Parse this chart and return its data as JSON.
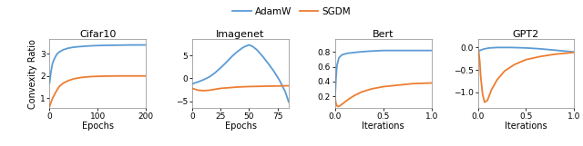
{
  "legend_labels": [
    "AdamW",
    "SGDM"
  ],
  "subplots": [
    {
      "title": "Cifar10",
      "xlabel": "Epochs",
      "ylabel": "Convexity Ratio",
      "xlim": [
        0,
        200
      ],
      "ylim": [
        0.55,
        3.65
      ],
      "yticks": [
        1,
        2,
        3
      ],
      "xticks": [
        0,
        100,
        200
      ],
      "adamw_x": [
        0,
        3,
        6,
        10,
        15,
        20,
        28,
        38,
        50,
        65,
        85,
        110,
        140,
        170,
        200
      ],
      "adamw_y": [
        1.68,
        2.2,
        2.55,
        2.78,
        2.98,
        3.08,
        3.18,
        3.25,
        3.3,
        3.33,
        3.36,
        3.38,
        3.39,
        3.4,
        3.4
      ],
      "sgdm_x": [
        0,
        3,
        6,
        10,
        15,
        20,
        28,
        38,
        50,
        65,
        85,
        110,
        140,
        170,
        200
      ],
      "sgdm_y": [
        0.62,
        0.8,
        0.98,
        1.15,
        1.35,
        1.52,
        1.67,
        1.78,
        1.87,
        1.93,
        1.97,
        1.99,
        2.0,
        2.0,
        2.0
      ]
    },
    {
      "title": "Imagenet",
      "xlabel": "Epochs",
      "ylabel": "",
      "xlim": [
        0,
        85
      ],
      "ylim": [
        -6.5,
        8.5
      ],
      "yticks": [
        -5,
        0,
        5
      ],
      "xticks": [
        0,
        25,
        50,
        75
      ],
      "adamw_x": [
        0,
        5,
        10,
        15,
        20,
        25,
        30,
        35,
        40,
        45,
        50,
        53,
        57,
        62,
        67,
        72,
        77,
        82,
        85
      ],
      "adamw_y": [
        -1.2,
        -0.8,
        -0.3,
        0.3,
        1.2,
        2.3,
        3.5,
        4.8,
        5.9,
        6.8,
        7.3,
        7.0,
        6.2,
        4.8,
        3.2,
        1.5,
        -0.5,
        -3.0,
        -5.2
      ],
      "sgdm_x": [
        0,
        5,
        10,
        15,
        20,
        25,
        30,
        35,
        40,
        45,
        50,
        55,
        60,
        65,
        70,
        75,
        80,
        85
      ],
      "sgdm_y": [
        -2.2,
        -2.6,
        -2.7,
        -2.6,
        -2.4,
        -2.2,
        -2.1,
        -2.0,
        -1.9,
        -1.85,
        -1.8,
        -1.78,
        -1.75,
        -1.72,
        -1.7,
        -1.68,
        -1.65,
        -1.62
      ]
    },
    {
      "title": "Bert",
      "xlabel": "Iterations",
      "ylabel": "",
      "xlim": [
        0.0,
        1.0
      ],
      "ylim": [
        0.04,
        0.97
      ],
      "yticks": [
        0.2,
        0.4,
        0.6,
        0.8
      ],
      "xticks": [
        0.0,
        0.5,
        1.0
      ],
      "adamw_x": [
        0.0,
        0.01,
        0.02,
        0.04,
        0.07,
        0.12,
        0.18,
        0.25,
        0.35,
        0.5,
        0.65,
        0.8,
        1.0
      ],
      "adamw_y": [
        0.18,
        0.45,
        0.62,
        0.72,
        0.76,
        0.78,
        0.79,
        0.8,
        0.81,
        0.82,
        0.82,
        0.82,
        0.82
      ],
      "sgdm_x": [
        0.0,
        0.01,
        0.02,
        0.03,
        0.05,
        0.07,
        0.1,
        0.14,
        0.2,
        0.28,
        0.38,
        0.5,
        0.65,
        0.8,
        1.0
      ],
      "sgdm_y": [
        0.18,
        0.1,
        0.07,
        0.06,
        0.07,
        0.09,
        0.12,
        0.16,
        0.21,
        0.26,
        0.3,
        0.33,
        0.35,
        0.37,
        0.38
      ]
    },
    {
      "title": "GPT2",
      "xlabel": "Iterations",
      "ylabel": "",
      "xlim": [
        0.0,
        1.0
      ],
      "ylim": [
        -1.35,
        0.18
      ],
      "yticks": [
        -1.0,
        -0.5,
        0.0
      ],
      "xticks": [
        0.0,
        0.5,
        1.0
      ],
      "adamw_x": [
        0.0,
        0.01,
        0.02,
        0.04,
        0.07,
        0.12,
        0.2,
        0.35,
        0.5,
        0.65,
        0.8,
        1.0
      ],
      "adamw_y": [
        -0.03,
        -0.06,
        -0.07,
        -0.05,
        -0.03,
        -0.01,
        0.0,
        0.0,
        -0.01,
        -0.03,
        -0.06,
        -0.1
      ],
      "sgdm_x": [
        0.0,
        0.01,
        0.02,
        0.03,
        0.05,
        0.07,
        0.1,
        0.14,
        0.2,
        0.28,
        0.38,
        0.5,
        0.65,
        0.8,
        1.0
      ],
      "sgdm_y": [
        -0.03,
        -0.1,
        -0.3,
        -0.65,
        -1.05,
        -1.22,
        -1.18,
        -0.95,
        -0.72,
        -0.52,
        -0.38,
        -0.27,
        -0.2,
        -0.15,
        -0.11
      ]
    }
  ],
  "adamw_color": "#5B9BD5",
  "sgdm_color": "#ED7D31",
  "bg_color": "#FFFFFF",
  "linewidth": 1.3,
  "title_fontsize": 8,
  "label_fontsize": 7,
  "tick_fontsize": 6.5
}
